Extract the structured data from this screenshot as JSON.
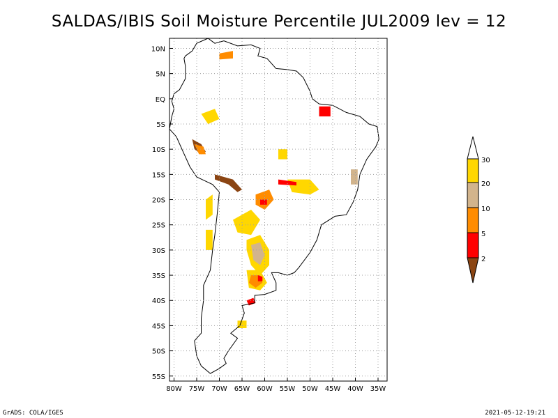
{
  "title": "SALDAS/IBIS Soil Moisture Percentile JUL2009 lev = 12",
  "footer": {
    "left": "GrADS: COLA/IGES",
    "right": "2021-05-12-19:21"
  },
  "map": {
    "lon_range": [
      -81,
      -33
    ],
    "lat_range": [
      -56,
      12
    ],
    "lat_ticks": [
      {
        "value": 10,
        "label": "10N"
      },
      {
        "value": 5,
        "label": "5N"
      },
      {
        "value": 0,
        "label": "EQ"
      },
      {
        "value": -5,
        "label": "5S"
      },
      {
        "value": -10,
        "label": "10S"
      },
      {
        "value": -15,
        "label": "15S"
      },
      {
        "value": -20,
        "label": "20S"
      },
      {
        "value": -25,
        "label": "25S"
      },
      {
        "value": -30,
        "label": "30S"
      },
      {
        "value": -35,
        "label": "35S"
      },
      {
        "value": -40,
        "label": "40S"
      },
      {
        "value": -45,
        "label": "45S"
      },
      {
        "value": -50,
        "label": "50S"
      },
      {
        "value": -55,
        "label": "55S"
      }
    ],
    "lon_ticks": [
      {
        "value": -80,
        "label": "80W"
      },
      {
        "value": -75,
        "label": "75W"
      },
      {
        "value": -70,
        "label": "70W"
      },
      {
        "value": -65,
        "label": "65W"
      },
      {
        "value": -60,
        "label": "60W"
      },
      {
        "value": -55,
        "label": "55W"
      },
      {
        "value": -50,
        "label": "50W"
      },
      {
        "value": -45,
        "label": "45W"
      },
      {
        "value": -40,
        "label": "40W"
      },
      {
        "value": -35,
        "label": "35W"
      }
    ],
    "gridlines": true,
    "colors": {
      "lt2": "#8b4513",
      "2to5": "#ff0000",
      "5to10": "#ff8c00",
      "10to20": "#d2b48c",
      "20to30": "#ffd700",
      "coast": "#000000",
      "grid": "#a0a0a0"
    },
    "coastline": [
      [
        -77.5,
        8.5
      ],
      [
        -76,
        9.5
      ],
      [
        -75,
        11
      ],
      [
        -72.5,
        12
      ],
      [
        -71,
        11
      ],
      [
        -69,
        11.5
      ],
      [
        -66,
        10.5
      ],
      [
        -63,
        10.7
      ],
      [
        -61,
        10
      ],
      [
        -61.5,
        8.5
      ],
      [
        -59.5,
        8
      ],
      [
        -57.5,
        6
      ],
      [
        -55,
        5.8
      ],
      [
        -53,
        5.5
      ],
      [
        -51.5,
        4.2
      ],
      [
        -50,
        1.5
      ],
      [
        -49.5,
        0
      ],
      [
        -48,
        -1
      ],
      [
        -45,
        -1.3
      ],
      [
        -42,
        -2.7
      ],
      [
        -39,
        -3.5
      ],
      [
        -37,
        -5
      ],
      [
        -35.2,
        -5.5
      ],
      [
        -34.8,
        -8
      ],
      [
        -35.5,
        -9.5
      ],
      [
        -37.5,
        -12
      ],
      [
        -39,
        -15
      ],
      [
        -39.5,
        -18
      ],
      [
        -40.5,
        -20.5
      ],
      [
        -42,
        -23
      ],
      [
        -44.5,
        -23.3
      ],
      [
        -47.5,
        -25
      ],
      [
        -48.5,
        -28
      ],
      [
        -50,
        -30.5
      ],
      [
        -52.5,
        -33.5
      ],
      [
        -53.5,
        -34.5
      ],
      [
        -55,
        -35
      ],
      [
        -57,
        -34.5
      ],
      [
        -58.5,
        -34.5
      ],
      [
        -57.5,
        -36.5
      ],
      [
        -57.5,
        -38
      ],
      [
        -60,
        -38.8
      ],
      [
        -62.2,
        -39
      ],
      [
        -62.2,
        -40.5
      ],
      [
        -65,
        -41
      ],
      [
        -64.5,
        -42.5
      ],
      [
        -65.5,
        -45
      ],
      [
        -67.5,
        -46.5
      ],
      [
        -66,
        -47.5
      ],
      [
        -68,
        -50
      ],
      [
        -69,
        -51.5
      ],
      [
        -68.5,
        -52.5
      ],
      [
        -70,
        -53.5
      ],
      [
        -72,
        -54.5
      ],
      [
        -74,
        -53
      ],
      [
        -75,
        -51
      ],
      [
        -75.5,
        -48
      ],
      [
        -74,
        -46.5
      ],
      [
        -74,
        -43.5
      ],
      [
        -73.5,
        -40
      ],
      [
        -73.5,
        -37
      ],
      [
        -72,
        -34
      ],
      [
        -71.5,
        -30
      ],
      [
        -71,
        -27
      ],
      [
        -70.5,
        -23
      ],
      [
        -70,
        -18.5
      ],
      [
        -71.5,
        -17
      ],
      [
        -75,
        -15.5
      ],
      [
        -76.5,
        -13.5
      ],
      [
        -78,
        -10.5
      ],
      [
        -79.5,
        -7.5
      ],
      [
        -81,
        -6
      ],
      [
        -80.5,
        -3.5
      ],
      [
        -80,
        -2
      ],
      [
        -80.5,
        -0.5
      ],
      [
        -80,
        1
      ],
      [
        -78.8,
        1.8
      ],
      [
        -77.5,
        4
      ],
      [
        -77.5,
        6.5
      ],
      [
        -77.8,
        8
      ]
    ],
    "fields": [
      {
        "class": "20to30",
        "points": [
          [
            -64,
            -28
          ],
          [
            -61,
            -27
          ],
          [
            -59,
            -30
          ],
          [
            -59,
            -33
          ],
          [
            -61,
            -35
          ],
          [
            -63,
            -33
          ],
          [
            -64,
            -30
          ]
        ]
      },
      {
        "class": "10to20",
        "points": [
          [
            -63,
            -29
          ],
          [
            -61,
            -28.5
          ],
          [
            -60,
            -31
          ],
          [
            -61,
            -33
          ],
          [
            -62.5,
            -32
          ]
        ]
      },
      {
        "class": "20to30",
        "points": [
          [
            -64,
            -34
          ],
          [
            -61,
            -34
          ],
          [
            -59.5,
            -36.5
          ],
          [
            -61,
            -38
          ],
          [
            -63.5,
            -37.5
          ]
        ]
      },
      {
        "class": "5to10",
        "points": [
          [
            -63,
            -35
          ],
          [
            -61,
            -35
          ],
          [
            -60.5,
            -36.5
          ],
          [
            -62,
            -37.5
          ],
          [
            -63.5,
            -36.5
          ]
        ]
      },
      {
        "class": "2to5",
        "points": [
          [
            -61.5,
            -35
          ],
          [
            -60.5,
            -35.3
          ],
          [
            -60.5,
            -36.2
          ],
          [
            -61.5,
            -36.2
          ]
        ]
      },
      {
        "class": "2to5",
        "points": [
          [
            -64,
            -40
          ],
          [
            -62.5,
            -39.5
          ],
          [
            -62,
            -40.5
          ],
          [
            -63.5,
            -41
          ]
        ]
      },
      {
        "class": "20to30",
        "points": [
          [
            -67,
            -24
          ],
          [
            -63,
            -22
          ],
          [
            -61,
            -24
          ],
          [
            -63,
            -27
          ],
          [
            -66,
            -26.5
          ]
        ]
      },
      {
        "class": "5to10",
        "points": [
          [
            -62,
            -19
          ],
          [
            -59,
            -18
          ],
          [
            -58,
            -20
          ],
          [
            -60,
            -22
          ],
          [
            -62,
            -21
          ]
        ]
      },
      {
        "class": "2to5",
        "points": [
          [
            -61,
            -20
          ],
          [
            -59.5,
            -20
          ],
          [
            -59.5,
            -21
          ],
          [
            -61,
            -21
          ]
        ]
      },
      {
        "class": "20to30",
        "points": [
          [
            -55,
            -16
          ],
          [
            -50,
            -16
          ],
          [
            -48,
            -18
          ],
          [
            -50,
            -19
          ],
          [
            -54,
            -18.5
          ]
        ]
      },
      {
        "class": "2to5",
        "points": [
          [
            -57,
            -16
          ],
          [
            -53,
            -16.5
          ],
          [
            -53,
            -17.2
          ],
          [
            -57,
            -17
          ]
        ]
      },
      {
        "class": "2to5",
        "points": [
          [
            -48,
            -1.5
          ],
          [
            -45.5,
            -1.5
          ],
          [
            -45.5,
            -3.5
          ],
          [
            -48,
            -3.5
          ]
        ]
      },
      {
        "class": "20to30",
        "points": [
          [
            -74,
            -3
          ],
          [
            -71,
            -2
          ],
          [
            -70,
            -4
          ],
          [
            -72.5,
            -5
          ]
        ]
      },
      {
        "class": "20to30",
        "points": [
          [
            -57,
            -10
          ],
          [
            -55,
            -10
          ],
          [
            -55,
            -12
          ],
          [
            -57,
            -12
          ]
        ]
      },
      {
        "class": "lt2",
        "points": [
          [
            -71,
            -15
          ],
          [
            -67,
            -16
          ],
          [
            -65,
            -18
          ],
          [
            -66,
            -18.5
          ],
          [
            -68,
            -17
          ],
          [
            -71,
            -16
          ]
        ]
      },
      {
        "class": "lt2",
        "points": [
          [
            -76,
            -8
          ],
          [
            -74,
            -9
          ],
          [
            -73,
            -10.5
          ],
          [
            -74,
            -11
          ],
          [
            -75.5,
            -10
          ]
        ]
      },
      {
        "class": "5to10",
        "points": [
          [
            -75.5,
            -9
          ],
          [
            -73.5,
            -9.5
          ],
          [
            -73,
            -11
          ],
          [
            -74.5,
            -11
          ]
        ]
      },
      {
        "class": "20to30",
        "points": [
          [
            -73,
            -20
          ],
          [
            -71.5,
            -19
          ],
          [
            -71.5,
            -23
          ],
          [
            -73,
            -24
          ]
        ]
      },
      {
        "class": "20to30",
        "points": [
          [
            -73,
            -26
          ],
          [
            -71.5,
            -26
          ],
          [
            -71.5,
            -30
          ],
          [
            -73,
            -30
          ]
        ]
      },
      {
        "class": "5to10",
        "points": [
          [
            -70,
            9
          ],
          [
            -67,
            9.5
          ],
          [
            -67,
            8
          ],
          [
            -70,
            7.8
          ]
        ]
      },
      {
        "class": "20to30",
        "points": [
          [
            -66,
            -44
          ],
          [
            -64,
            -44
          ],
          [
            -64,
            -45.5
          ],
          [
            -66,
            -45.5
          ]
        ]
      },
      {
        "class": "10to20",
        "points": [
          [
            -41,
            -14
          ],
          [
            -39.5,
            -14
          ],
          [
            -39.5,
            -17
          ],
          [
            -41,
            -17
          ]
        ]
      }
    ]
  }
}
